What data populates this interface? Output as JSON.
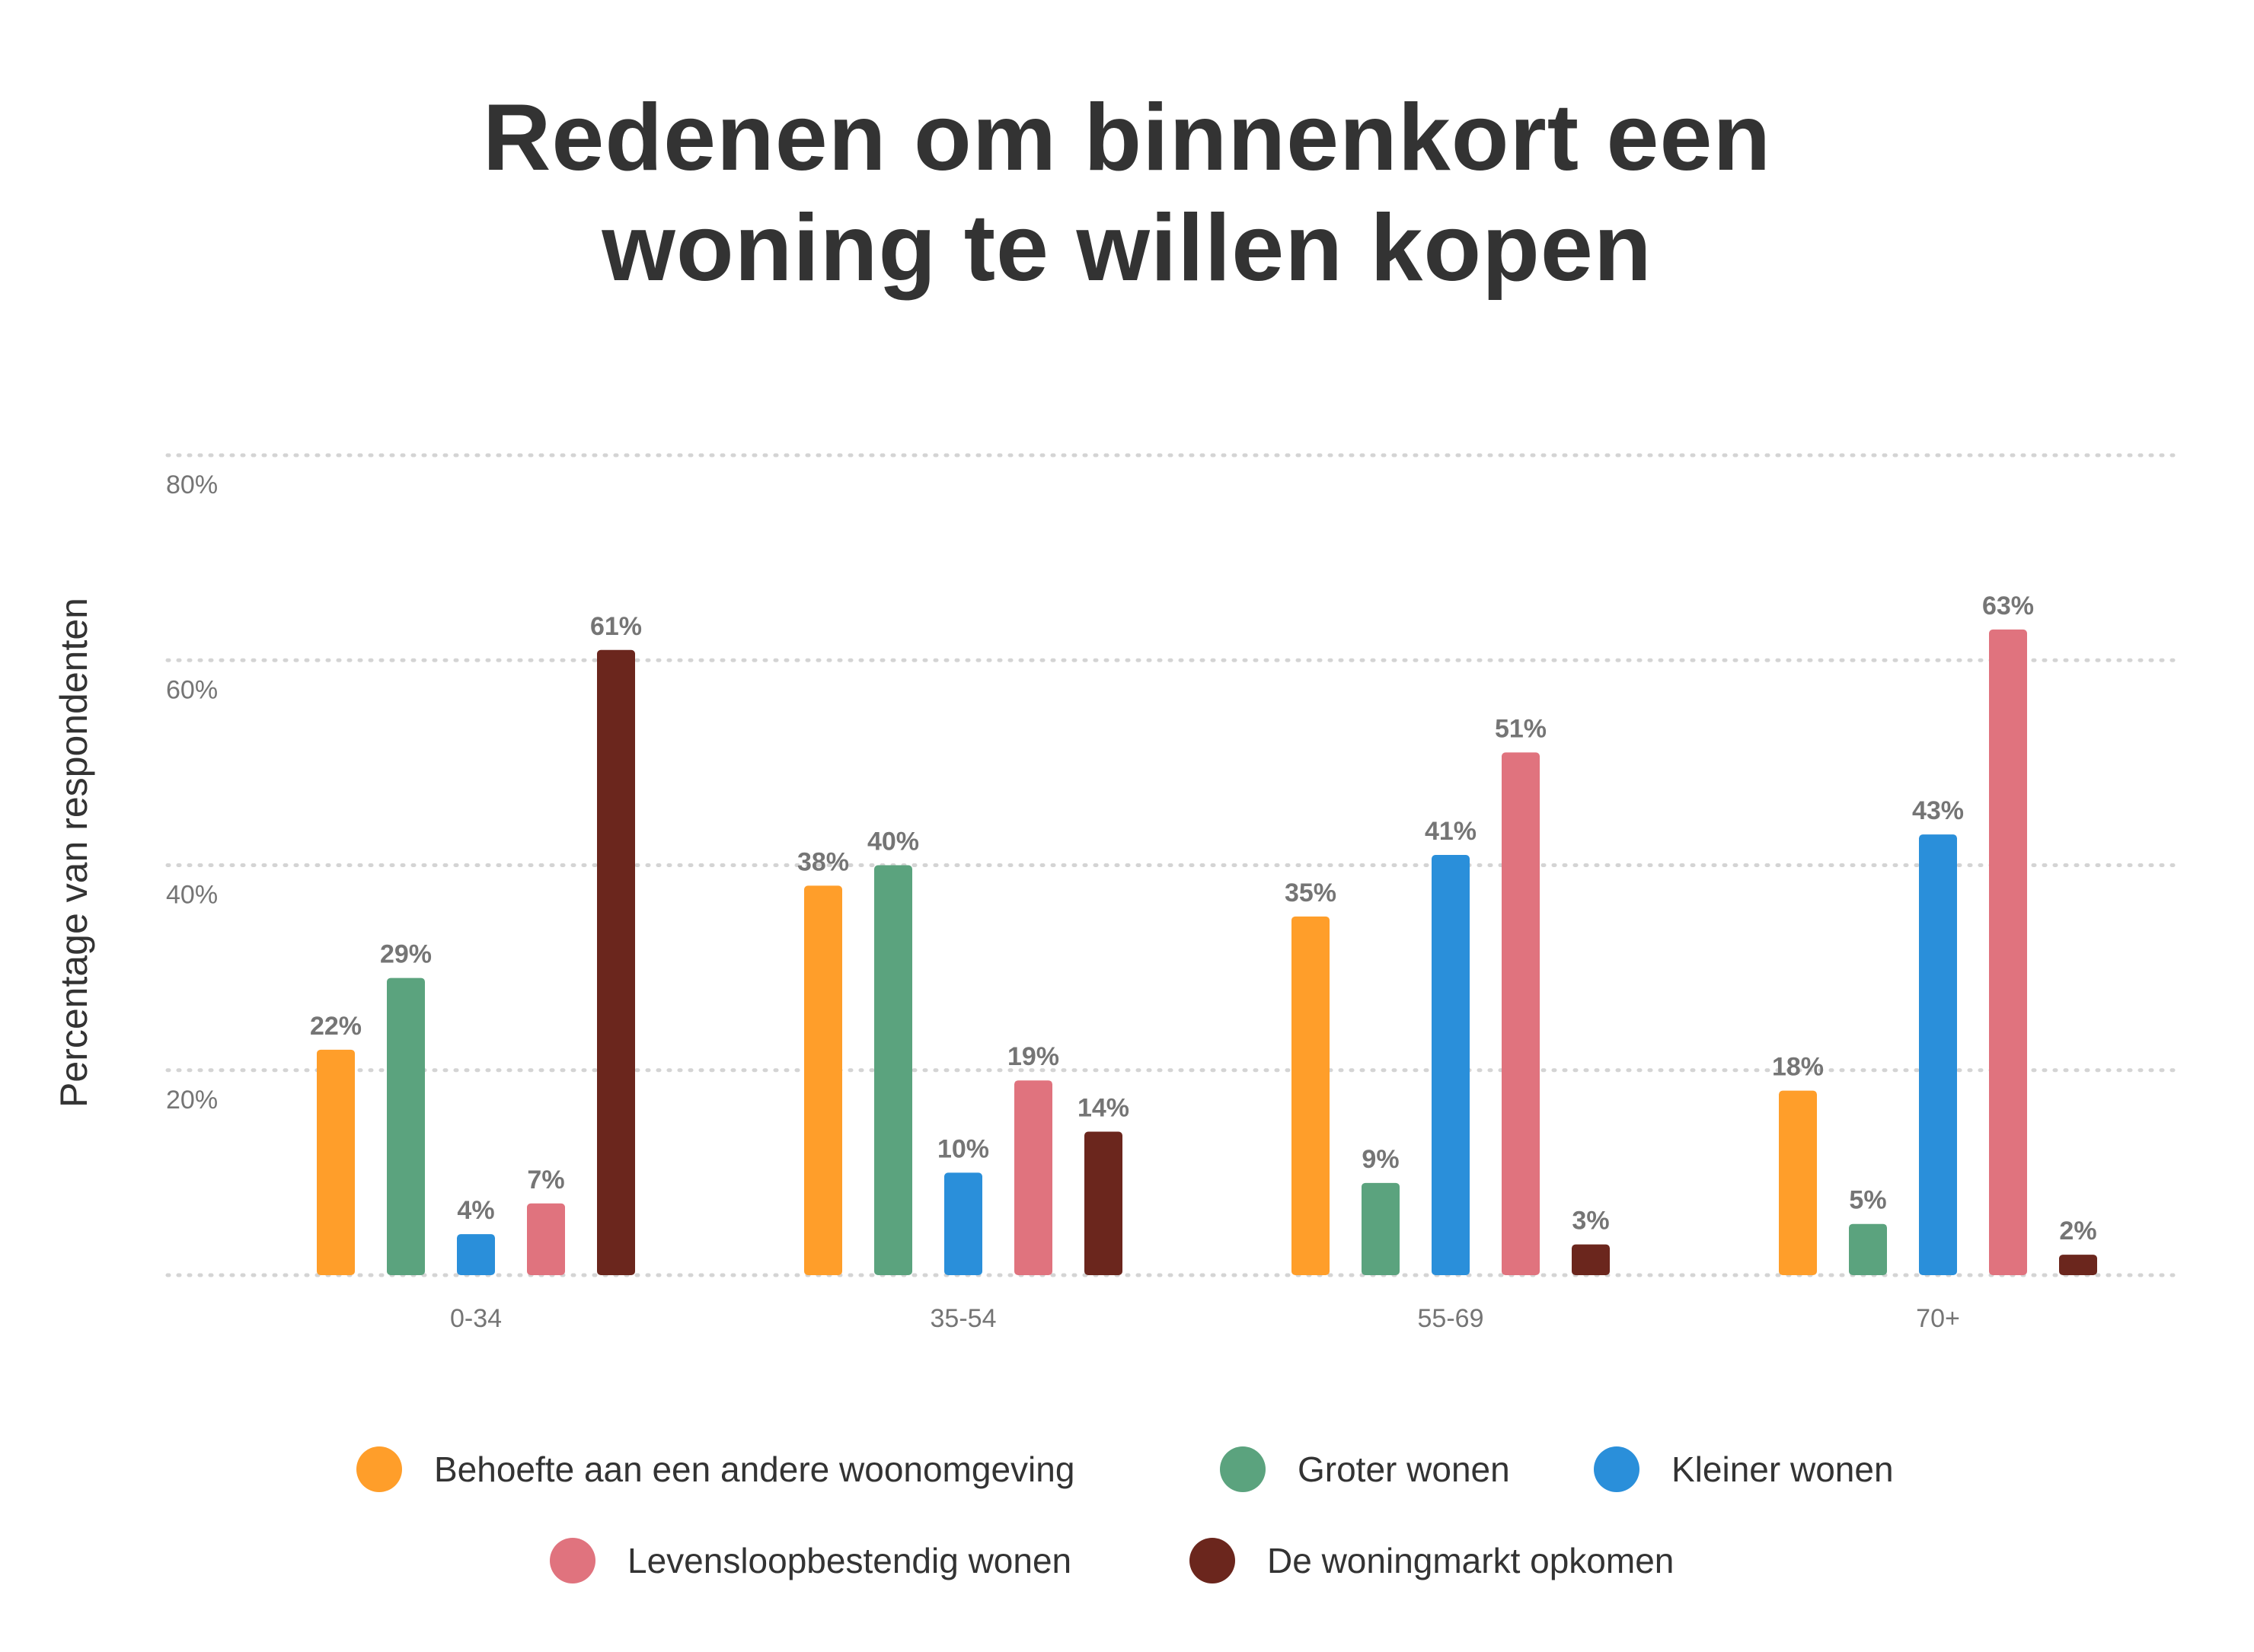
{
  "chart_data": {
    "type": "bar",
    "title_lines": [
      "Redenen om binnenkort een",
      "woning te willen kopen"
    ],
    "ylabel": "Percentage van respondenten",
    "xlabel": "",
    "ylim": [
      0,
      80
    ],
    "yticks": [
      20,
      40,
      60,
      80
    ],
    "ytick_labels": [
      "20%",
      "40%",
      "60%",
      "80%"
    ],
    "grid": "horizontal-dotted",
    "legend_position": "bottom",
    "categories": [
      "0-34",
      "35-54",
      "55-69",
      "70+"
    ],
    "series": [
      {
        "name": "Behoefte aan een andere woonomgeving",
        "color": "#FF9E2A",
        "values": [
          22,
          38,
          35,
          18
        ],
        "labels": [
          "22%",
          "38%",
          "35%",
          "18%"
        ]
      },
      {
        "name": "Groter wonen",
        "color": "#5BA37E",
        "values": [
          29,
          40,
          9,
          5
        ],
        "labels": [
          "29%",
          "40%",
          "9%",
          "5%"
        ]
      },
      {
        "name": "Kleiner wonen",
        "color": "#2A8FDA",
        "values": [
          4,
          10,
          41,
          43
        ],
        "labels": [
          "4%",
          "10%",
          "41%",
          "43%"
        ]
      },
      {
        "name": "Levensloopbestendig wonen",
        "color": "#E0737E",
        "values": [
          7,
          19,
          51,
          63
        ],
        "labels": [
          "7%",
          "19%",
          "51%",
          "63%"
        ]
      },
      {
        "name": "De woningmarkt opkomen",
        "color": "#6B261D",
        "values": [
          61,
          14,
          3,
          2
        ],
        "labels": [
          "61%",
          "14%",
          "3%",
          "2%"
        ]
      }
    ]
  }
}
